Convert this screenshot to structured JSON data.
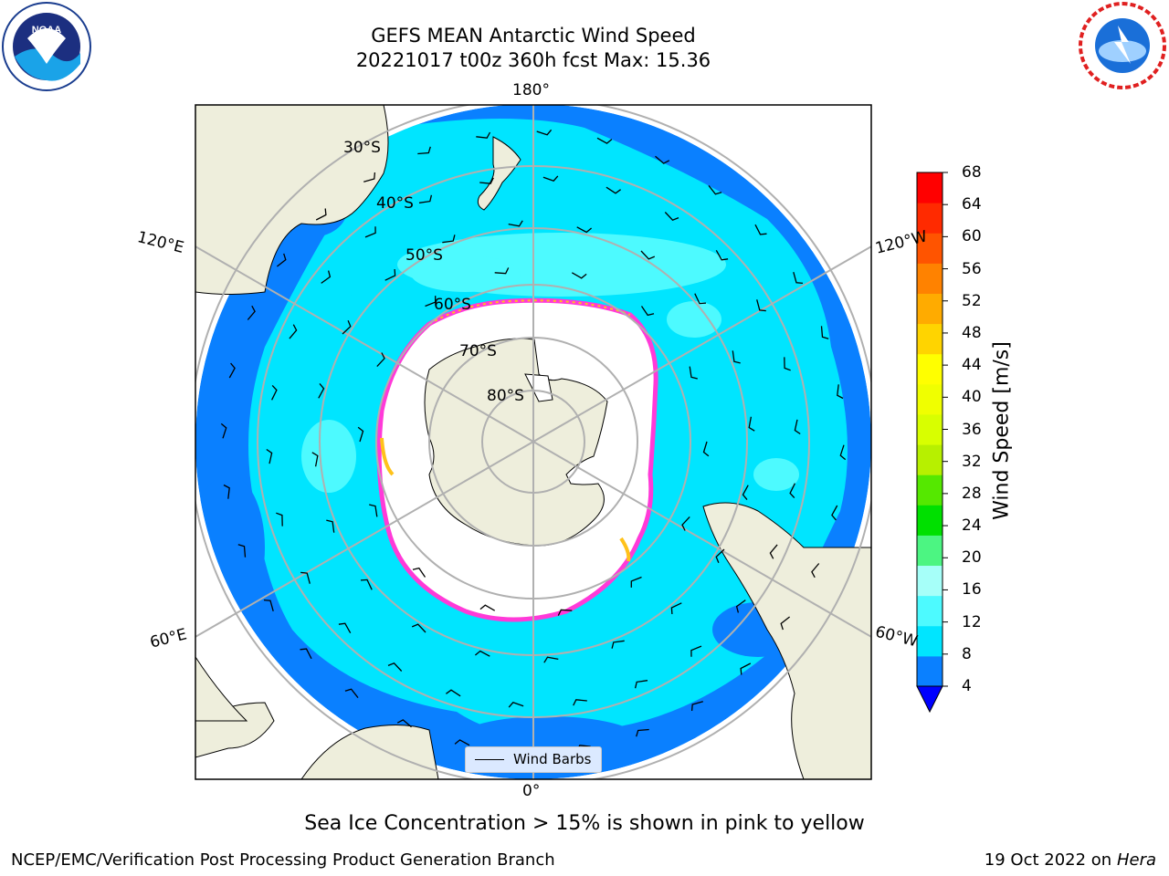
{
  "title": {
    "line1": "GEFS MEAN Antarctic Wind Speed",
    "line2": "20221017 t00z 360h fcst   Max: 15.36"
  },
  "map": {
    "projection": "south-polar-stereographic",
    "longitude_labels": [
      "180°",
      "120°E",
      "120°W",
      "60°E",
      "60°W",
      "0°"
    ],
    "latitude_labels": [
      "30°S",
      "40°S",
      "50°S",
      "60°S",
      "70°S",
      "80°S"
    ],
    "colors": {
      "land": "#eeeedc",
      "ice_free": "#ffffff",
      "ocean_4_8": "#0a80ff",
      "ocean_8_12": "#00e5ff",
      "ocean_12_16": "#4dfaff",
      "sea_ice_edge": "#ff3ad8",
      "sea_ice_yellow": "#ffc21a",
      "grid": "#b0b0b0"
    }
  },
  "colorbar": {
    "title": "Wind Speed [m/s]",
    "ticks": [
      "4",
      "8",
      "12",
      "16",
      "20",
      "24",
      "28",
      "32",
      "36",
      "40",
      "44",
      "48",
      "52",
      "56",
      "60",
      "64",
      "68"
    ],
    "colors": [
      "#0a80ff",
      "#00e5ff",
      "#4dfaff",
      "#a6fff9",
      "#4cf582",
      "#00e000",
      "#55e800",
      "#b7f000",
      "#d8ff00",
      "#f0ff00",
      "#ffff00",
      "#ffd400",
      "#ffab00",
      "#ff8200",
      "#ff5400",
      "#ff2a00",
      "#ff0000"
    ],
    "under_color": "#0000ff"
  },
  "legend": {
    "label": "Wind Barbs"
  },
  "footer": {
    "caption": "Sea Ice Concentration > 15% is shown in pink to yellow",
    "credit": "NCEP/EMC/Verification Post Processing Product Generation Branch",
    "date": "19 Oct 2022",
    "on": "on",
    "machine": "Hera"
  },
  "logos": {
    "left": "noaa-logo",
    "right": "nws-logo"
  }
}
